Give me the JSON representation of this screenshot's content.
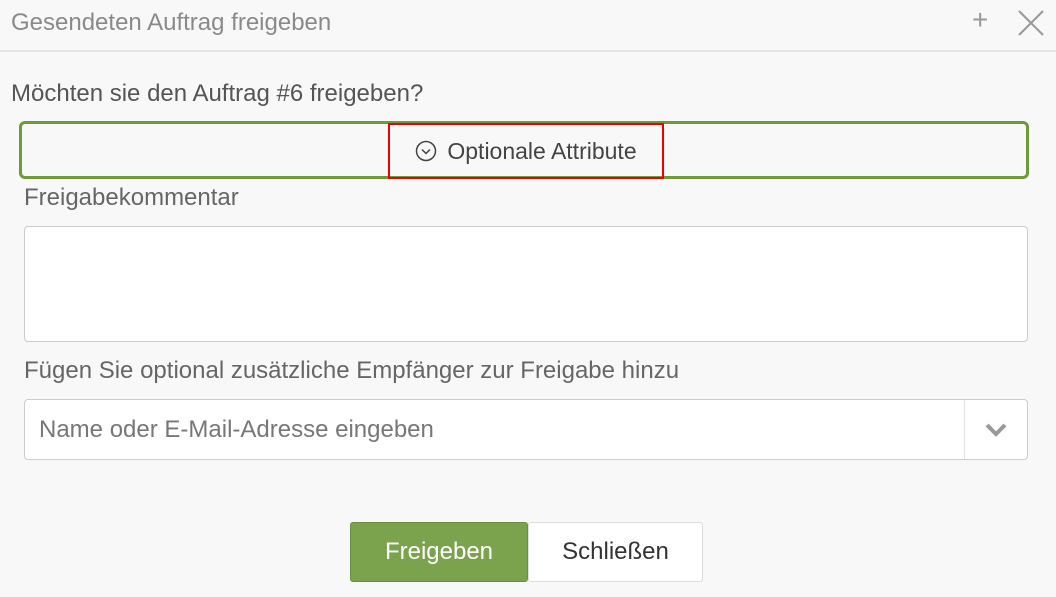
{
  "dialog": {
    "title": "Gesendeten Auftrag freigeben",
    "plus_label": "+",
    "question": "Möchten sie den Auftrag #6 freigeben?",
    "optional_attributes_label": "Optionale Attribute",
    "comment_label": "Freigabekommentar",
    "comment_value": "",
    "recipients_label": "Fügen Sie optional zusätzliche Empfänger zur Freigabe hinzu",
    "recipients_placeholder": "Name oder E-Mail-Adresse eingeben",
    "approve_button": "Freigeben",
    "close_button": "Schließen"
  },
  "colors": {
    "accent": "#7ba34e",
    "border_accent": "#6f9a37",
    "highlight": "#ee0000"
  },
  "icons": {
    "close": "close-icon",
    "expand": "chevron-circle-down-icon",
    "dropdown": "chevron-down-icon",
    "plus": "plus-icon"
  }
}
